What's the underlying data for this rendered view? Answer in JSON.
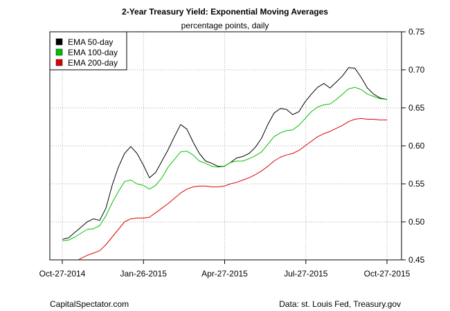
{
  "chart_data": {
    "type": "line",
    "title": "2-Year Treasury Yield: Exponential Moving Averages",
    "subtitle": "percentage points, daily",
    "x_ticks": [
      "Oct-27-2014",
      "Jan-26-2015",
      "Apr-27-2015",
      "Jul-27-2015",
      "Oct-27-2015"
    ],
    "x_range": [
      "2014-10-27",
      "2015-10-27"
    ],
    "y_ticks": [
      "0.45",
      "0.50",
      "0.55",
      "0.60",
      "0.65",
      "0.70",
      "0.75"
    ],
    "ylim": [
      0.45,
      0.75
    ],
    "y_axis_side": "right",
    "grid": true,
    "grid_style": "dotted",
    "legend_position": "top-left",
    "series": [
      {
        "name": "EMA 50-day",
        "color": "#000000",
        "points": [
          [
            "2014-10-27",
            0.477
          ],
          [
            "2014-11-03",
            0.479
          ],
          [
            "2014-11-10",
            0.486
          ],
          [
            "2014-11-17",
            0.493
          ],
          [
            "2014-11-24",
            0.5
          ],
          [
            "2014-12-01",
            0.504
          ],
          [
            "2014-12-08",
            0.502
          ],
          [
            "2014-12-15",
            0.518
          ],
          [
            "2014-12-22",
            0.548
          ],
          [
            "2014-12-29",
            0.572
          ],
          [
            "2015-01-05",
            0.59
          ],
          [
            "2015-01-12",
            0.599
          ],
          [
            "2015-01-19",
            0.59
          ],
          [
            "2015-01-26",
            0.575
          ],
          [
            "2015-02-02",
            0.558
          ],
          [
            "2015-02-09",
            0.565
          ],
          [
            "2015-02-16",
            0.58
          ],
          [
            "2015-02-23",
            0.595
          ],
          [
            "2015-03-02",
            0.612
          ],
          [
            "2015-03-09",
            0.628
          ],
          [
            "2015-03-16",
            0.622
          ],
          [
            "2015-03-23",
            0.605
          ],
          [
            "2015-03-30",
            0.59
          ],
          [
            "2015-04-06",
            0.58
          ],
          [
            "2015-04-13",
            0.577
          ],
          [
            "2015-04-20",
            0.573
          ],
          [
            "2015-04-27",
            0.573
          ],
          [
            "2015-05-04",
            0.578
          ],
          [
            "2015-05-11",
            0.584
          ],
          [
            "2015-05-18",
            0.586
          ],
          [
            "2015-05-25",
            0.59
          ],
          [
            "2015-06-01",
            0.598
          ],
          [
            "2015-06-08",
            0.61
          ],
          [
            "2015-06-15",
            0.628
          ],
          [
            "2015-06-22",
            0.643
          ],
          [
            "2015-06-29",
            0.649
          ],
          [
            "2015-07-06",
            0.648
          ],
          [
            "2015-07-13",
            0.641
          ],
          [
            "2015-07-20",
            0.645
          ],
          [
            "2015-07-27",
            0.658
          ],
          [
            "2015-08-03",
            0.668
          ],
          [
            "2015-08-10",
            0.677
          ],
          [
            "2015-08-17",
            0.682
          ],
          [
            "2015-08-24",
            0.676
          ],
          [
            "2015-08-31",
            0.684
          ],
          [
            "2015-09-07",
            0.692
          ],
          [
            "2015-09-14",
            0.703
          ],
          [
            "2015-09-21",
            0.702
          ],
          [
            "2015-09-28",
            0.69
          ],
          [
            "2015-10-05",
            0.676
          ],
          [
            "2015-10-12",
            0.668
          ],
          [
            "2015-10-19",
            0.663
          ],
          [
            "2015-10-27",
            0.661
          ]
        ]
      },
      {
        "name": "EMA 100-day",
        "color": "#00c000",
        "points": [
          [
            "2014-10-27",
            0.475
          ],
          [
            "2014-11-03",
            0.476
          ],
          [
            "2014-11-10",
            0.48
          ],
          [
            "2014-11-17",
            0.485
          ],
          [
            "2014-11-24",
            0.49
          ],
          [
            "2014-12-01",
            0.491
          ],
          [
            "2014-12-08",
            0.495
          ],
          [
            "2014-12-15",
            0.508
          ],
          [
            "2014-12-22",
            0.525
          ],
          [
            "2014-12-29",
            0.54
          ],
          [
            "2015-01-05",
            0.553
          ],
          [
            "2015-01-12",
            0.555
          ],
          [
            "2015-01-19",
            0.55
          ],
          [
            "2015-01-26",
            0.548
          ],
          [
            "2015-02-02",
            0.543
          ],
          [
            "2015-02-09",
            0.548
          ],
          [
            "2015-02-16",
            0.558
          ],
          [
            "2015-02-23",
            0.572
          ],
          [
            "2015-03-02",
            0.582
          ],
          [
            "2015-03-09",
            0.592
          ],
          [
            "2015-03-16",
            0.593
          ],
          [
            "2015-03-23",
            0.588
          ],
          [
            "2015-03-30",
            0.58
          ],
          [
            "2015-04-06",
            0.577
          ],
          [
            "2015-04-13",
            0.573
          ],
          [
            "2015-04-20",
            0.572
          ],
          [
            "2015-04-27",
            0.573
          ],
          [
            "2015-05-04",
            0.578
          ],
          [
            "2015-05-11",
            0.58
          ],
          [
            "2015-05-18",
            0.58
          ],
          [
            "2015-05-25",
            0.583
          ],
          [
            "2015-06-01",
            0.587
          ],
          [
            "2015-06-08",
            0.592
          ],
          [
            "2015-06-15",
            0.602
          ],
          [
            "2015-06-22",
            0.612
          ],
          [
            "2015-06-29",
            0.617
          ],
          [
            "2015-07-06",
            0.62
          ],
          [
            "2015-07-13",
            0.621
          ],
          [
            "2015-07-20",
            0.627
          ],
          [
            "2015-07-27",
            0.636
          ],
          [
            "2015-08-03",
            0.645
          ],
          [
            "2015-08-10",
            0.651
          ],
          [
            "2015-08-17",
            0.654
          ],
          [
            "2015-08-24",
            0.655
          ],
          [
            "2015-08-31",
            0.661
          ],
          [
            "2015-09-07",
            0.668
          ],
          [
            "2015-09-14",
            0.675
          ],
          [
            "2015-09-21",
            0.677
          ],
          [
            "2015-09-28",
            0.674
          ],
          [
            "2015-10-05",
            0.668
          ],
          [
            "2015-10-12",
            0.665
          ],
          [
            "2015-10-19",
            0.662
          ],
          [
            "2015-10-27",
            0.661
          ]
        ]
      },
      {
        "name": "EMA 200-day",
        "color": "#e00000",
        "points": [
          [
            "2014-10-27",
            0.44
          ],
          [
            "2014-11-03",
            0.443
          ],
          [
            "2014-11-10",
            0.447
          ],
          [
            "2014-11-17",
            0.452
          ],
          [
            "2014-11-24",
            0.456
          ],
          [
            "2014-12-01",
            0.459
          ],
          [
            "2014-12-08",
            0.462
          ],
          [
            "2014-12-15",
            0.47
          ],
          [
            "2014-12-22",
            0.48
          ],
          [
            "2014-12-29",
            0.49
          ],
          [
            "2015-01-05",
            0.5
          ],
          [
            "2015-01-12",
            0.504
          ],
          [
            "2015-01-19",
            0.505
          ],
          [
            "2015-01-26",
            0.505
          ],
          [
            "2015-02-02",
            0.506
          ],
          [
            "2015-02-09",
            0.512
          ],
          [
            "2015-02-16",
            0.518
          ],
          [
            "2015-02-23",
            0.524
          ],
          [
            "2015-03-02",
            0.531
          ],
          [
            "2015-03-09",
            0.538
          ],
          [
            "2015-03-16",
            0.543
          ],
          [
            "2015-03-23",
            0.546
          ],
          [
            "2015-03-30",
            0.547
          ],
          [
            "2015-04-06",
            0.547
          ],
          [
            "2015-04-13",
            0.546
          ],
          [
            "2015-04-20",
            0.546
          ],
          [
            "2015-04-27",
            0.547
          ],
          [
            "2015-05-04",
            0.55
          ],
          [
            "2015-05-11",
            0.552
          ],
          [
            "2015-05-18",
            0.555
          ],
          [
            "2015-05-25",
            0.558
          ],
          [
            "2015-06-01",
            0.562
          ],
          [
            "2015-06-08",
            0.567
          ],
          [
            "2015-06-15",
            0.573
          ],
          [
            "2015-06-22",
            0.58
          ],
          [
            "2015-06-29",
            0.585
          ],
          [
            "2015-07-06",
            0.588
          ],
          [
            "2015-07-13",
            0.59
          ],
          [
            "2015-07-20",
            0.594
          ],
          [
            "2015-07-27",
            0.6
          ],
          [
            "2015-08-03",
            0.606
          ],
          [
            "2015-08-10",
            0.612
          ],
          [
            "2015-08-17",
            0.616
          ],
          [
            "2015-08-24",
            0.619
          ],
          [
            "2015-08-31",
            0.623
          ],
          [
            "2015-09-07",
            0.627
          ],
          [
            "2015-09-14",
            0.632
          ],
          [
            "2015-09-21",
            0.635
          ],
          [
            "2015-09-28",
            0.636
          ],
          [
            "2015-10-05",
            0.635
          ],
          [
            "2015-10-12",
            0.635
          ],
          [
            "2015-10-19",
            0.634
          ],
          [
            "2015-10-27",
            0.634
          ]
        ]
      }
    ]
  },
  "footer": {
    "left": "CapitalSpectator.com",
    "right": "Data: st. Louis Fed, Treasury.gov"
  }
}
